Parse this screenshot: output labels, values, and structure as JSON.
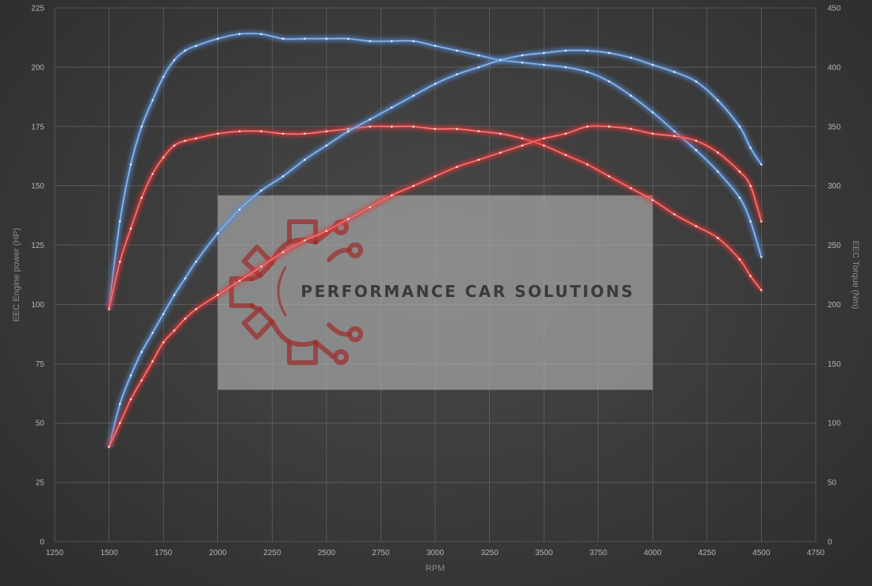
{
  "chart_data": {
    "type": "line",
    "xlabel": "RPM",
    "ylabel_left": "EEC Engine power (HP)",
    "ylabel_right": "EEC Torque (Nm)",
    "xlim": [
      1250,
      4750
    ],
    "ylim_left": [
      0,
      225
    ],
    "ylim_right": [
      0,
      450
    ],
    "x_ticks": [
      1250,
      1500,
      1750,
      2000,
      2250,
      2500,
      2750,
      3000,
      3250,
      3500,
      3750,
      4000,
      4250,
      4500,
      4750
    ],
    "y_ticks_left": [
      0,
      25,
      50,
      75,
      100,
      125,
      150,
      175,
      200,
      225
    ],
    "y_ticks_right": [
      0,
      50,
      100,
      150,
      200,
      250,
      300,
      350,
      400,
      450
    ],
    "grid": true,
    "series": [
      {
        "axis": "right",
        "color": "#5a8fd6",
        "x": [
          1500,
          1550,
          1600,
          1650,
          1700,
          1750,
          1800,
          1850,
          1900,
          2000,
          2100,
          2200,
          2300,
          2400,
          2500,
          2600,
          2700,
          2800,
          2900,
          3000,
          3100,
          3200,
          3300,
          3400,
          3500,
          3600,
          3700,
          3800,
          3900,
          4000,
          4100,
          4200,
          4300,
          4400,
          4450,
          4500
        ],
        "y": [
          198,
          270,
          318,
          350,
          372,
          392,
          406,
          414,
          418,
          424,
          428,
          428,
          424,
          424,
          424,
          424,
          422,
          422,
          422,
          418,
          414,
          410,
          406,
          404,
          402,
          400,
          396,
          388,
          376,
          362,
          346,
          330,
          312,
          290,
          270,
          240
        ]
      },
      {
        "axis": "right",
        "color": "#e33b3b",
        "x": [
          1500,
          1550,
          1600,
          1650,
          1700,
          1750,
          1800,
          1850,
          1900,
          2000,
          2100,
          2200,
          2300,
          2400,
          2500,
          2600,
          2700,
          2800,
          2900,
          3000,
          3100,
          3200,
          3300,
          3400,
          3500,
          3600,
          3700,
          3800,
          3900,
          4000,
          4100,
          4200,
          4300,
          4400,
          4450,
          4500
        ],
        "y": [
          196,
          236,
          264,
          290,
          310,
          324,
          334,
          338,
          340,
          344,
          346,
          346,
          344,
          344,
          346,
          348,
          350,
          350,
          350,
          348,
          348,
          346,
          344,
          340,
          334,
          326,
          318,
          308,
          298,
          288,
          276,
          266,
          256,
          238,
          224,
          212
        ]
      },
      {
        "axis": "left",
        "color": "#5a8fd6",
        "x": [
          1500,
          1550,
          1600,
          1650,
          1700,
          1750,
          1800,
          1850,
          1900,
          2000,
          2100,
          2200,
          2300,
          2400,
          2500,
          2600,
          2700,
          2800,
          2900,
          3000,
          3100,
          3200,
          3300,
          3400,
          3500,
          3600,
          3700,
          3800,
          3900,
          4000,
          4100,
          4200,
          4300,
          4400,
          4450,
          4500
        ],
        "y": [
          40,
          58,
          70,
          80,
          88,
          96,
          104,
          111,
          118,
          130,
          140,
          148,
          154,
          161,
          167,
          173,
          178,
          183,
          188,
          193,
          197,
          200,
          203,
          205,
          206,
          207,
          207,
          206,
          204,
          201,
          198,
          194,
          186,
          175,
          166,
          159
        ]
      },
      {
        "axis": "left",
        "color": "#e33b3b",
        "x": [
          1500,
          1550,
          1600,
          1650,
          1700,
          1750,
          1800,
          1850,
          1900,
          2000,
          2100,
          2200,
          2300,
          2400,
          2500,
          2600,
          2700,
          2800,
          2900,
          3000,
          3100,
          3200,
          3300,
          3400,
          3500,
          3600,
          3700,
          3800,
          3900,
          4000,
          4100,
          4200,
          4300,
          4400,
          4450,
          4500
        ],
        "y": [
          40,
          50,
          60,
          68,
          76,
          84,
          89,
          94,
          98,
          104,
          110,
          116,
          122,
          127,
          131,
          136,
          141,
          146,
          150,
          154,
          158,
          161,
          164,
          167,
          170,
          172,
          175,
          175,
          174,
          172,
          171,
          169,
          164,
          156,
          150,
          135
        ]
      }
    ]
  },
  "watermark": {
    "text": "PERFORMANCE CAR SOLUTIONS",
    "logo_icon": "gear-circuit-logo-icon",
    "logo_color": "#9c3030",
    "panel_x_range": [
      2000,
      4000
    ],
    "panel_y_range_left": [
      64,
      146
    ]
  }
}
